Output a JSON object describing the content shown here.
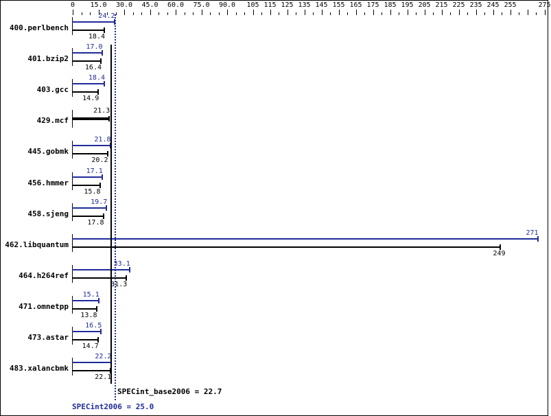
{
  "chart_data": {
    "type": "bar",
    "orientation": "horizontal",
    "title": "",
    "xlabel": "",
    "ylabel": "",
    "xlim": [
      0,
      275
    ],
    "x_ticks": [
      "0",
      "15.0",
      "30.0",
      "45.0",
      "60.0",
      "75.0",
      "90.0",
      "105",
      "115",
      "125",
      "135",
      "145",
      "155",
      "165",
      "175",
      "185",
      "195",
      "205",
      "215",
      "225",
      "235",
      "245",
      "255",
      "275"
    ],
    "categories": [
      "400.perlbench",
      "401.bzip2",
      "403.gcc",
      "429.mcf",
      "445.gobmk",
      "456.hmmer",
      "458.sjeng",
      "462.libquantum",
      "464.h264ref",
      "471.omnetpp",
      "473.astar",
      "483.xalancbmk"
    ],
    "series": [
      {
        "name": "SPECint2006 (peak)",
        "color": "#1f2a9a",
        "values": [
          24.2,
          17.0,
          18.4,
          null,
          21.8,
          17.1,
          19.7,
          271,
          33.1,
          15.1,
          16.5,
          22.2
        ]
      },
      {
        "name": "SPECint_base2006 (base)",
        "color": "#000000",
        "values": [
          18.4,
          16.4,
          14.9,
          21.3,
          20.2,
          15.8,
          17.8,
          249,
          31.3,
          13.8,
          14.7,
          22.1
        ]
      }
    ],
    "annotations": {
      "base_summary": "SPECint_base2006 = 22.7",
      "peak_summary": "SPECint2006 = 25.0",
      "base_ref": 22.7,
      "peak_ref": 25.0
    },
    "grid": false,
    "legend": "none"
  },
  "labels": {
    "base_summary": "SPECint_base2006 = 22.7",
    "peak_summary": "SPECint2006 = 25.0"
  }
}
